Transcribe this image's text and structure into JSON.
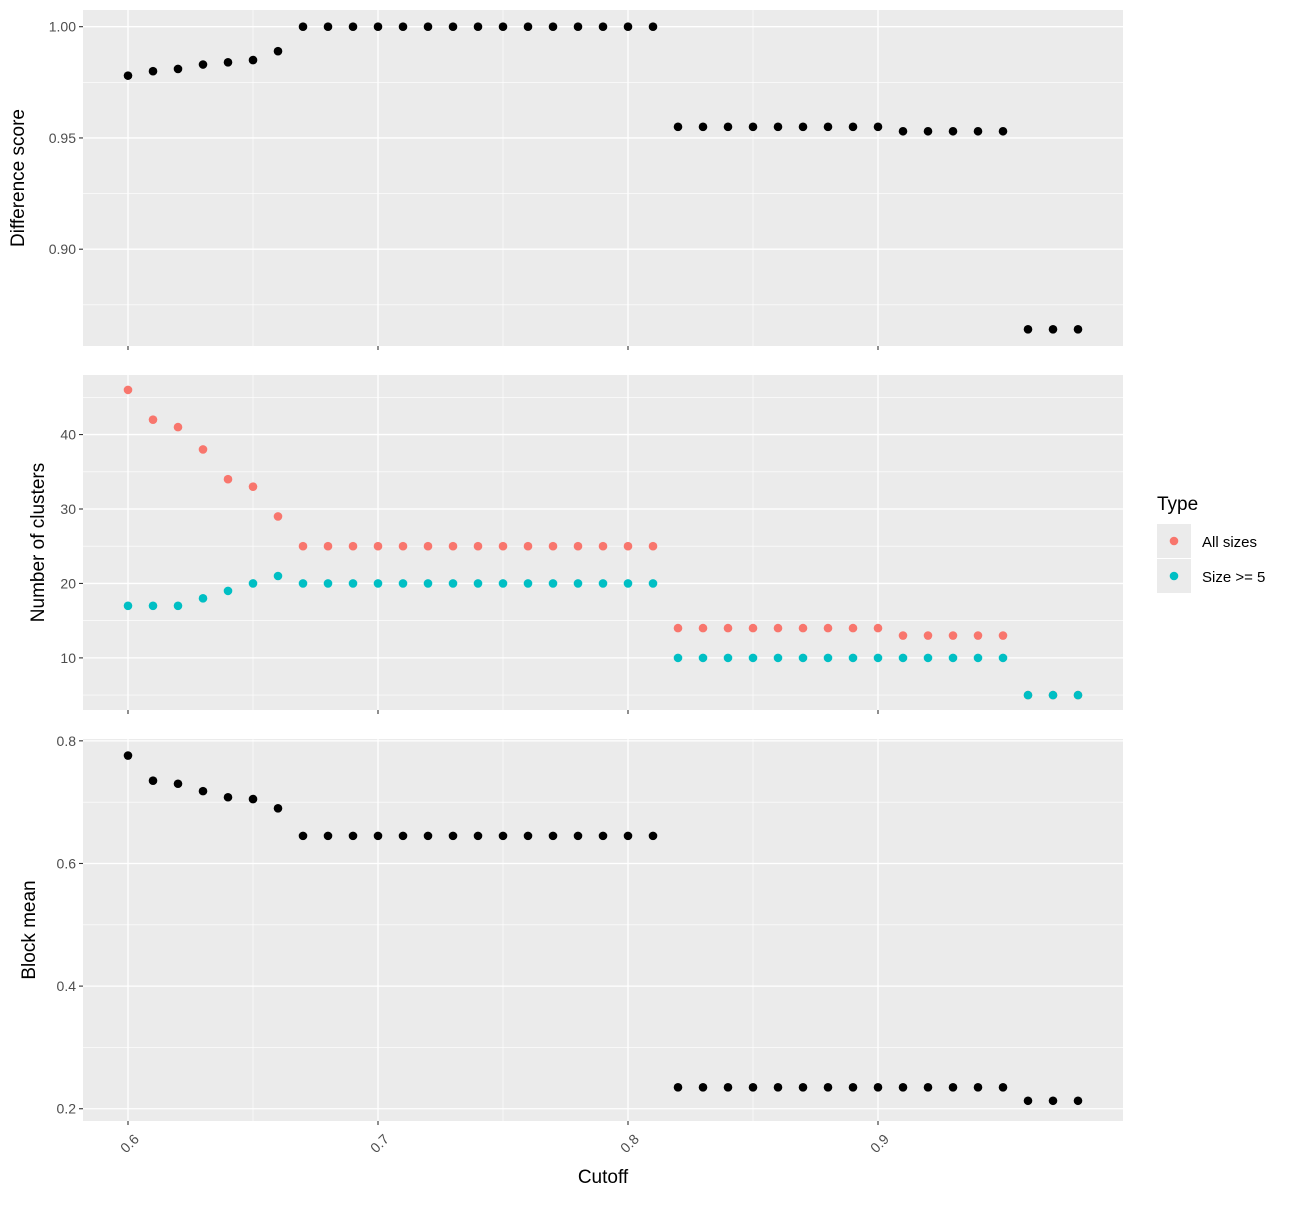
{
  "colors": {
    "panel_background": "#EBEBEB",
    "grid_major": "#FFFFFF",
    "all_sizes": "#F8766D",
    "size_ge_5": "#00BFC4",
    "points_black": "#000000",
    "tick_text": "#4D4D4D"
  },
  "chart_data": {
    "type": "scatter",
    "xlabel": "Cutoff",
    "x_ticks": [
      0.6,
      0.7,
      0.8,
      0.9
    ],
    "x_tick_labels": [
      "0.6",
      "0.7",
      "0.8",
      "0.9"
    ],
    "xlim": [
      0.582,
      0.998
    ],
    "x": [
      0.6,
      0.61,
      0.62,
      0.63,
      0.64,
      0.65,
      0.66,
      0.67,
      0.68,
      0.69,
      0.7,
      0.71,
      0.72,
      0.73,
      0.74,
      0.75,
      0.76,
      0.77,
      0.78,
      0.79,
      0.8,
      0.81,
      0.82,
      0.83,
      0.84,
      0.85,
      0.86,
      0.87,
      0.88,
      0.89,
      0.9,
      0.91,
      0.92,
      0.93,
      0.94,
      0.95,
      0.96,
      0.97,
      0.98
    ],
    "grid": true,
    "panels": [
      {
        "ylabel": "Difference score",
        "ylim": [
          0.8565,
          1.0075
        ],
        "y_ticks": [
          0.9,
          0.95,
          1.0
        ],
        "y_tick_labels": [
          "0.90",
          "0.95",
          "1.00"
        ],
        "series": [
          {
            "color": "#000000",
            "values": [
              0.978,
              0.98,
              0.981,
              0.983,
              0.984,
              0.985,
              0.989,
              1.0,
              1.0,
              1.0,
              1.0,
              1.0,
              1.0,
              1.0,
              1.0,
              1.0,
              1.0,
              1.0,
              1.0,
              1.0,
              1.0,
              1.0,
              0.955,
              0.955,
              0.955,
              0.955,
              0.955,
              0.955,
              0.955,
              0.955,
              0.955,
              0.953,
              0.953,
              0.953,
              0.953,
              0.953,
              0.864,
              0.864,
              0.864
            ]
          }
        ]
      },
      {
        "ylabel": "Number of clusters",
        "ylim": [
          3,
          48
        ],
        "y_ticks": [
          10,
          20,
          30,
          40
        ],
        "y_tick_labels": [
          "10",
          "20",
          "30",
          "40"
        ],
        "series": [
          {
            "name": "All sizes",
            "color": "#F8766D",
            "values": [
              46,
              42,
              41,
              38,
              34,
              33,
              29,
              25,
              25,
              25,
              25,
              25,
              25,
              25,
              25,
              25,
              25,
              25,
              25,
              25,
              25,
              25,
              14,
              14,
              14,
              14,
              14,
              14,
              14,
              14,
              14,
              13,
              13,
              13,
              13,
              13,
              5,
              5,
              5
            ]
          },
          {
            "name": "Size >= 5",
            "color": "#00BFC4",
            "values": [
              17,
              17,
              17,
              18,
              19,
              20,
              21,
              20,
              20,
              20,
              20,
              20,
              20,
              20,
              20,
              20,
              20,
              20,
              20,
              20,
              20,
              20,
              10,
              10,
              10,
              10,
              10,
              10,
              10,
              10,
              10,
              10,
              10,
              10,
              10,
              10,
              5,
              5,
              5
            ]
          }
        ]
      },
      {
        "ylabel": "Block mean",
        "ylim": [
          0.18,
          0.803
        ],
        "y_ticks": [
          0.2,
          0.4,
          0.6,
          0.8
        ],
        "y_tick_labels": [
          "0.2",
          "0.4",
          "0.6",
          "0.8"
        ],
        "series": [
          {
            "color": "#000000",
            "values": [
              0.776,
              0.735,
              0.73,
              0.718,
              0.708,
              0.705,
              0.69,
              0.645,
              0.645,
              0.645,
              0.645,
              0.645,
              0.645,
              0.645,
              0.645,
              0.645,
              0.645,
              0.645,
              0.645,
              0.645,
              0.645,
              0.645,
              0.235,
              0.235,
              0.235,
              0.235,
              0.235,
              0.235,
              0.235,
              0.235,
              0.235,
              0.235,
              0.235,
              0.235,
              0.235,
              0.235,
              0.213,
              0.213,
              0.213
            ]
          }
        ]
      }
    ],
    "legend": {
      "title": "Type",
      "position": "right",
      "items": [
        {
          "label": "All sizes",
          "color": "#F8766D"
        },
        {
          "label": "Size >= 5",
          "color": "#00BFC4"
        }
      ]
    }
  }
}
